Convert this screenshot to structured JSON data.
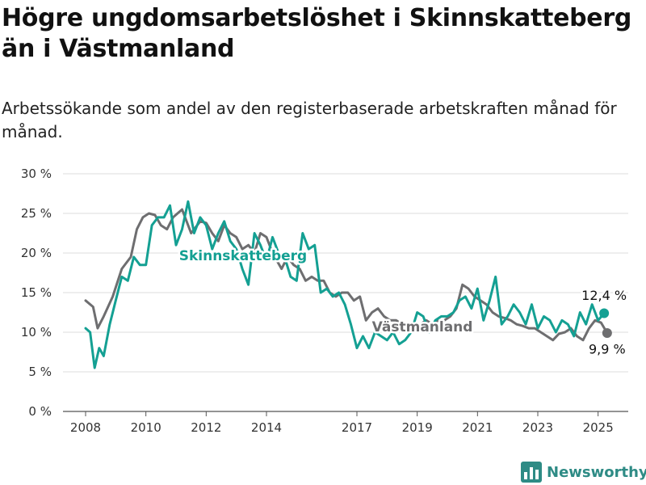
{
  "header": {
    "title": "Högre ungdomsarbetslöshet i Skinnskatteberg än i Västmanland",
    "subtitle": "Arbetssökande som andel av den registerbaserade arbetskraften månad för månad."
  },
  "brand": {
    "name": "Newsworthy",
    "icon": "bar-chart-logo-icon"
  },
  "colors": {
    "Skinnskatteberg": "#14a093",
    "Västmanland": "#6e6e70",
    "grid": "#dddddd"
  },
  "chart_data": {
    "type": "line",
    "ylim": [
      0,
      30
    ],
    "y_ticks": [
      0,
      5,
      10,
      15,
      20,
      25,
      30
    ],
    "y_tick_labels": [
      "0 %",
      "5 %",
      "10 %",
      "15 %",
      "20 %",
      "25 %",
      "30 %"
    ],
    "x_ticks": [
      2008,
      2010,
      2012,
      2014,
      2017,
      2019,
      2021,
      2023,
      2025
    ],
    "x_tick_labels": [
      "2008",
      "2010",
      "2012",
      "2014",
      "2017",
      "2019",
      "2021",
      "2023",
      "2025"
    ],
    "xlim": [
      2007.25,
      2026.0
    ],
    "grid": true,
    "series": [
      {
        "name": "Västmanland",
        "label": "Västmanland",
        "end_label": "9,9 %",
        "x": [
          2008.0,
          2008.25,
          2008.4,
          2008.6,
          2008.9,
          2009.2,
          2009.5,
          2009.7,
          2009.9,
          2010.1,
          2010.3,
          2010.5,
          2010.7,
          2010.9,
          2011.2,
          2011.5,
          2011.8,
          2012.0,
          2012.2,
          2012.4,
          2012.6,
          2012.8,
          2013.0,
          2013.2,
          2013.4,
          2013.6,
          2013.8,
          2014.0,
          2014.2,
          2014.5,
          2014.7,
          2014.9,
          2015.1,
          2015.3,
          2015.5,
          2015.7,
          2015.9,
          2016.1,
          2016.3,
          2016.5,
          2016.7,
          2016.9,
          2017.1,
          2017.3,
          2017.5,
          2017.7,
          2017.9,
          2018.1,
          2018.3,
          2018.5,
          2018.7,
          2018.9,
          2019.1,
          2019.3,
          2019.5,
          2019.7,
          2019.9,
          2020.1,
          2020.3,
          2020.5,
          2020.7,
          2020.9,
          2021.1,
          2021.3,
          2021.5,
          2021.7,
          2021.9,
          2022.1,
          2022.3,
          2022.5,
          2022.7,
          2022.9,
          2023.1,
          2023.3,
          2023.5,
          2023.7,
          2023.9,
          2024.1,
          2024.3,
          2024.5,
          2024.7,
          2024.9,
          2025.1,
          2025.3
        ],
        "values": [
          14.0,
          13.2,
          10.5,
          12.0,
          14.5,
          18.0,
          19.5,
          23.0,
          24.5,
          25.0,
          24.8,
          23.5,
          23.0,
          24.5,
          25.5,
          22.5,
          24.0,
          23.8,
          22.5,
          21.5,
          23.5,
          22.5,
          22.0,
          20.5,
          21.0,
          20.0,
          22.5,
          22.0,
          20.0,
          18.0,
          19.5,
          18.5,
          18.0,
          16.5,
          17.0,
          16.5,
          16.5,
          15.0,
          14.5,
          15.0,
          15.0,
          14.0,
          14.5,
          11.5,
          12.5,
          13.0,
          12.0,
          11.5,
          11.5,
          11.0,
          10.5,
          10.5,
          11.0,
          11.5,
          11.0,
          11.5,
          11.5,
          12.0,
          13.0,
          16.0,
          15.5,
          14.5,
          14.0,
          13.5,
          12.5,
          12.0,
          11.8,
          11.5,
          11.0,
          10.8,
          10.5,
          10.5,
          10.0,
          9.5,
          9.0,
          9.8,
          10.0,
          10.5,
          9.5,
          9.0,
          10.5,
          11.5,
          11.2,
          9.9
        ]
      },
      {
        "name": "Skinnskatteberg",
        "label": "Skinnskatteberg",
        "end_label": "12,4 %",
        "x": [
          2008.0,
          2008.15,
          2008.3,
          2008.45,
          2008.6,
          2008.8,
          2009.0,
          2009.2,
          2009.4,
          2009.6,
          2009.8,
          2010.0,
          2010.2,
          2010.4,
          2010.6,
          2010.8,
          2011.0,
          2011.2,
          2011.4,
          2011.6,
          2011.8,
          2012.0,
          2012.2,
          2012.4,
          2012.6,
          2012.8,
          2013.0,
          2013.2,
          2013.4,
          2013.6,
          2013.8,
          2014.0,
          2014.2,
          2014.4,
          2014.6,
          2014.8,
          2015.0,
          2015.2,
          2015.4,
          2015.6,
          2015.8,
          2016.0,
          2016.2,
          2016.4,
          2016.6,
          2016.8,
          2017.0,
          2017.2,
          2017.4,
          2017.6,
          2017.8,
          2018.0,
          2018.2,
          2018.4,
          2018.6,
          2018.8,
          2019.0,
          2019.2,
          2019.4,
          2019.6,
          2019.8,
          2020.0,
          2020.2,
          2020.4,
          2020.6,
          2020.8,
          2021.0,
          2021.2,
          2021.4,
          2021.6,
          2021.8,
          2022.0,
          2022.2,
          2022.4,
          2022.6,
          2022.8,
          2023.0,
          2023.2,
          2023.4,
          2023.6,
          2023.8,
          2024.0,
          2024.2,
          2024.4,
          2024.6,
          2024.8,
          2025.0,
          2025.2
        ],
        "values": [
          10.5,
          10.0,
          5.5,
          8.0,
          7.0,
          11.0,
          14.0,
          17.0,
          16.5,
          19.5,
          18.5,
          18.5,
          23.5,
          24.5,
          24.5,
          26.0,
          21.0,
          23.0,
          26.5,
          22.5,
          24.5,
          23.5,
          20.5,
          22.5,
          24.0,
          21.5,
          20.5,
          18.0,
          16.0,
          22.5,
          21.0,
          19.0,
          22.0,
          20.0,
          19.5,
          17.0,
          16.5,
          22.5,
          20.5,
          21.0,
          15.0,
          15.5,
          14.5,
          15.0,
          13.5,
          11.0,
          8.0,
          9.5,
          8.0,
          10.0,
          9.5,
          9.0,
          10.0,
          8.5,
          9.0,
          10.0,
          12.5,
          12.0,
          10.0,
          11.5,
          12.0,
          12.0,
          12.5,
          14.0,
          14.5,
          13.0,
          15.5,
          11.5,
          14.0,
          17.0,
          11.0,
          12.0,
          13.5,
          12.5,
          11.0,
          13.5,
          10.5,
          12.0,
          11.5,
          10.0,
          11.5,
          11.0,
          9.5,
          12.5,
          11.0,
          13.5,
          11.5,
          12.4
        ]
      }
    ]
  }
}
